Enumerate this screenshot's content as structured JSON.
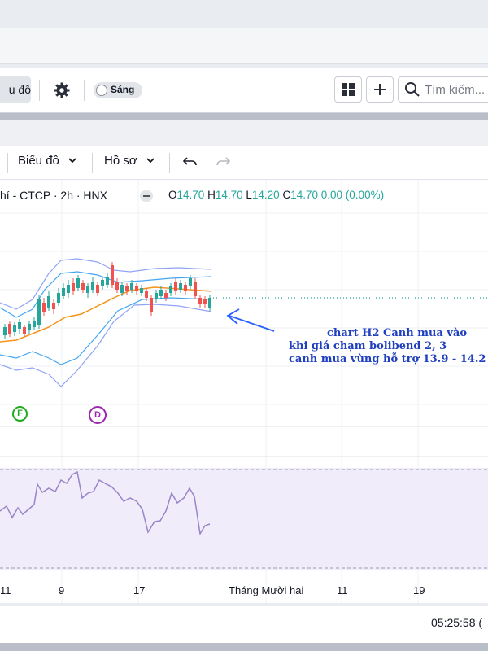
{
  "toolbar": {
    "chart_button_label": "u đồ",
    "theme_toggle_label": "Sáng",
    "search_placeholder": "Tìm kiếm..."
  },
  "chart_toolbar": {
    "chart_menu_label": "Biểu đồ",
    "profile_menu_label": "Hồ sơ"
  },
  "legend": {
    "symbol": "hí - CTCP · 2h · HNX",
    "open_label": "O",
    "open_value": "14.70",
    "high_label": "H",
    "high_value": "14.70",
    "low_label": "L",
    "low_value": "14.20",
    "close_label": "C",
    "close_value": "14.70",
    "change": "0.00 (0.00%)"
  },
  "markers": {
    "f": "F",
    "d": "D"
  },
  "annotation": {
    "line1": "chart H2    Canh mua vào",
    "line2": "khi giá chạm bolibend 2, 3",
    "line3": "canh mua vùng hỗ trợ 13.9  - 14.2"
  },
  "x_axis": {
    "ticks": [
      "11",
      "9",
      "17",
      "Tháng Mười hai",
      "11",
      "19"
    ]
  },
  "status": {
    "time": "05:25:58 ("
  },
  "colors": {
    "up": "#26a69a",
    "down": "#ef5350",
    "bb_mid": "#f7931a",
    "bb_band": "#2962ff",
    "rsi": "#7e57c2",
    "annotation": "#1f3fbf"
  },
  "chart_data": {
    "type": "candlestick",
    "indicators": [
      "Bollinger Bands",
      "RSI"
    ],
    "last_close": 14.7
  }
}
